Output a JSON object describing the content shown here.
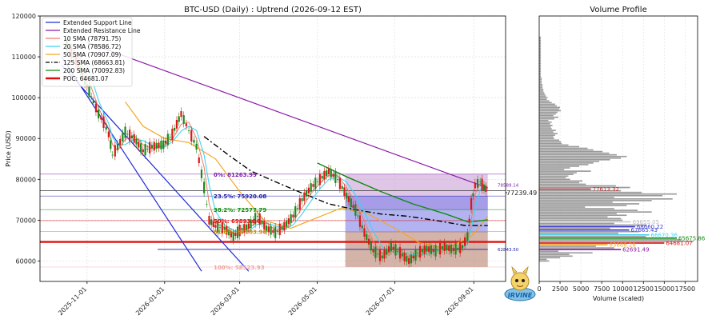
{
  "chart_data": [
    {
      "type": "candlestick",
      "title": "BTC-USD (Daily) : Uptrend (2026-09-12 EST)",
      "ylabel": "Price (USD)",
      "xlabel": "",
      "ylim": [
        55000,
        120000
      ],
      "xlim": [
        "2025-09-25",
        "2026-09-26"
      ],
      "yticks": [
        60000,
        70000,
        80000,
        90000,
        100000,
        110000,
        120000
      ],
      "xticks": [
        "2025-11-01",
        "2026-01-01",
        "2026-03-01",
        "2026-05-01",
        "2026-07-01",
        "2026-09-01"
      ],
      "grid": true,
      "legend_position": "top-left",
      "legend": [
        {
          "label": "Extended Support Line",
          "color": "#1f2bd6",
          "style": "solid"
        },
        {
          "label": "Extended Resistance Line",
          "color": "#8a1aa8",
          "style": "solid"
        },
        {
          "label": "10 SMA (78791.75)",
          "color": "#f07a6a",
          "style": "solid"
        },
        {
          "label": "20 SMA (78586.72)",
          "color": "#3fd4f0",
          "style": "solid"
        },
        {
          "label": "50 SMA (70907.09)",
          "color": "#f5a623",
          "style": "solid"
        },
        {
          "label": "125 SMA (68663.81)",
          "color": "#000000",
          "style": "dashdot"
        },
        {
          "label": "200 SMA (70092.83)",
          "color": "#118a11",
          "style": "solid"
        },
        {
          "label": "POC: 64681.07",
          "color": "#e01010",
          "style": "thick"
        }
      ],
      "price_path": [
        [
          "2025-10-16",
          113000
        ],
        [
          "2025-10-25",
          108000
        ],
        [
          "2025-11-01",
          103000
        ],
        [
          "2025-11-06",
          99000
        ],
        [
          "2025-11-10",
          96000
        ],
        [
          "2025-11-14",
          94000
        ],
        [
          "2025-11-18",
          91000
        ],
        [
          "2025-11-21",
          86000
        ],
        [
          "2025-11-25",
          88000
        ],
        [
          "2025-12-01",
          91500
        ],
        [
          "2025-12-08",
          90000
        ],
        [
          "2025-12-15",
          87000
        ],
        [
          "2025-12-22",
          88000
        ],
        [
          "2025-12-31",
          88500
        ],
        [
          "2026-01-07",
          91000
        ],
        [
          "2026-01-14",
          96000
        ],
        [
          "2026-01-20",
          92000
        ],
        [
          "2026-01-26",
          88000
        ],
        [
          "2026-02-01",
          78000
        ],
        [
          "2026-02-05",
          70000
        ],
        [
          "2026-02-10",
          68500
        ],
        [
          "2026-02-17",
          68000
        ],
        [
          "2026-02-24",
          66000
        ],
        [
          "2026-03-01",
          67500
        ],
        [
          "2026-03-08",
          68500
        ],
        [
          "2026-03-15",
          71000
        ],
        [
          "2026-03-22",
          68000
        ],
        [
          "2026-03-29",
          67000
        ],
        [
          "2026-04-05",
          68500
        ],
        [
          "2026-04-12",
          71000
        ],
        [
          "2026-04-19",
          75000
        ],
        [
          "2026-04-26",
          78000
        ],
        [
          "2026-05-03",
          80000
        ],
        [
          "2026-05-10",
          82000
        ],
        [
          "2026-05-17",
          80000
        ],
        [
          "2026-05-24",
          76000
        ],
        [
          "2026-05-31",
          72500
        ],
        [
          "2026-06-07",
          67000
        ],
        [
          "2026-06-14",
          62500
        ],
        [
          "2026-06-21",
          61000
        ],
        [
          "2026-06-28",
          63500
        ],
        [
          "2026-07-05",
          62000
        ],
        [
          "2026-07-12",
          60000
        ],
        [
          "2026-07-19",
          62000
        ],
        [
          "2026-07-26",
          63000
        ],
        [
          "2026-08-02",
          62500
        ],
        [
          "2026-08-09",
          63500
        ],
        [
          "2026-08-16",
          62800
        ],
        [
          "2026-08-23",
          63500
        ],
        [
          "2026-08-27",
          66000
        ],
        [
          "2026-08-30",
          74000
        ],
        [
          "2026-09-02",
          78500
        ],
        [
          "2026-09-06",
          79500
        ],
        [
          "2026-09-09",
          78000
        ],
        [
          "2026-09-12",
          77239.49
        ]
      ],
      "sma_50": [
        [
          "2025-12-01",
          99000
        ],
        [
          "2025-12-15",
          93000
        ],
        [
          "2026-01-01",
          90000
        ],
        [
          "2026-01-20",
          89000
        ],
        [
          "2026-02-10",
          85000
        ],
        [
          "2026-03-01",
          77000
        ],
        [
          "2026-03-20",
          70000
        ],
        [
          "2026-04-10",
          68000
        ],
        [
          "2026-04-30",
          70500
        ],
        [
          "2026-05-20",
          73000
        ],
        [
          "2026-06-10",
          71500
        ],
        [
          "2026-07-01",
          68000
        ],
        [
          "2026-07-20",
          64500
        ],
        [
          "2026-08-10",
          63000
        ],
        [
          "2026-08-30",
          66000
        ],
        [
          "2026-09-12",
          70907.09
        ]
      ],
      "sma_125": [
        [
          "2026-02-01",
          90500
        ],
        [
          "2026-02-20",
          86000
        ],
        [
          "2026-03-10",
          82000
        ],
        [
          "2026-04-01",
          79000
        ],
        [
          "2026-04-20",
          76500
        ],
        [
          "2026-05-10",
          74000
        ],
        [
          "2026-06-01",
          72500
        ],
        [
          "2026-06-20",
          71500
        ],
        [
          "2026-07-10",
          71000
        ],
        [
          "2026-08-01",
          70000
        ],
        [
          "2026-08-25",
          68700
        ],
        [
          "2026-09-12",
          68663.81
        ]
      ],
      "sma_200": [
        [
          "2026-05-01",
          84000
        ],
        [
          "2026-05-25",
          80500
        ],
        [
          "2026-06-20",
          77000
        ],
        [
          "2026-07-15",
          74000
        ],
        [
          "2026-08-10",
          71500
        ],
        [
          "2026-08-28",
          69500
        ],
        [
          "2026-09-12",
          70092.83
        ]
      ],
      "support_lines": [
        [
          [
            "2025-10-12",
            110000
          ],
          [
            "2026-01-30",
            57500
          ]
        ],
        [
          [
            "2025-10-12",
            108000
          ],
          [
            "2026-03-08",
            57500
          ]
        ]
      ],
      "resistance_line": [
        [
          "2025-11-01",
          113500
        ],
        [
          "2026-09-12",
          77900
        ]
      ],
      "fibonacci": [
        {
          "label": "0%: 81263.99",
          "value": 81263.99,
          "color": "#7a1aa8"
        },
        {
          "label": "23.5%: 75920.08",
          "value": 75920.08,
          "color": "#1a1aa8"
        },
        {
          "label": "38.2%: 72577.79",
          "value": 72577.79,
          "color": "#118a11"
        },
        {
          "label": "50%: 69893.36",
          "value": 69893.36,
          "color": "#e01010"
        },
        {
          "label": "61.8%: 67203.96",
          "value": 67203.96,
          "color": "#cc8a10"
        },
        {
          "label": "100%: 58523.93",
          "value": 58523.93,
          "color": "#f2a0a0"
        }
      ],
      "poc": 64681.07,
      "current_price": 77239.49,
      "annotations": [
        {
          "text": "78589.14",
          "value": 78589.14,
          "color": "#7a1aa8"
        },
        {
          "text": "62843.50",
          "value": 62843.5,
          "color": "#1a1aa8"
        }
      ],
      "zones": [
        {
          "from": "2026-05-23",
          "to": "2026-09-12",
          "low": 72577.79,
          "high": 81263.99,
          "color": "#c9a0d6"
        },
        {
          "from": "2026-05-23",
          "to": "2026-09-12",
          "low": 67000,
          "high": 75920.08,
          "color": "#8080e8"
        },
        {
          "from": "2026-05-23",
          "to": "2026-09-12",
          "low": 58523.93,
          "high": 67203.96,
          "color": "#b88070"
        }
      ]
    },
    {
      "type": "barh",
      "title": "Volume Profile",
      "xlabel": "Volume (scaled)",
      "xlim": [
        0,
        19000
      ],
      "xticks": [
        0,
        2500,
        5000,
        7500,
        10000,
        12500,
        15000,
        17500
      ],
      "price_levels": [
        60000,
        60400,
        60800,
        61200,
        61600,
        62000,
        62400,
        62800,
        63200,
        63600,
        64000,
        64400,
        64800,
        65200,
        65600,
        66000,
        66400,
        66800,
        67200,
        67600,
        68000,
        68400,
        68800,
        69200,
        69600,
        70000,
        70400,
        70800,
        71200,
        71600,
        72000,
        72400,
        72800,
        73200,
        73600,
        74000,
        74400,
        74800,
        75200,
        75600,
        76000,
        76400,
        76800,
        77200,
        77600,
        78000,
        78400,
        78800,
        79200,
        79600,
        80000,
        80400,
        80800,
        81200,
        81600,
        82000,
        82400,
        82800,
        83200,
        83600,
        84000,
        84400,
        84800,
        85200,
        85600,
        86000,
        86400,
        86800,
        87200,
        87600,
        88000,
        88400,
        88800,
        89200,
        89600,
        90000,
        90400,
        90800,
        91200,
        91600,
        92000,
        92400,
        92800,
        93200,
        93600,
        94000,
        94400,
        94800,
        95200,
        95600,
        96000,
        96400,
        96800,
        97200,
        97600,
        98000,
        98400,
        98800,
        99200,
        99600,
        100000,
        100400,
        100800,
        101200,
        101600,
        102000,
        102400,
        102800,
        103200,
        103600,
        104000,
        104400,
        104800,
        105200,
        105600,
        106000,
        106400,
        106800,
        107200,
        107600,
        108000,
        108400,
        108800,
        109200,
        109600,
        110000,
        110400,
        110800,
        111200,
        111600,
        112000,
        112400,
        112800,
        113200,
        113600,
        114000,
        114400,
        114800,
        115200
      ],
      "values": [
        1200,
        900,
        2500,
        4000,
        3600,
        6400,
        2300,
        9800,
        9000,
        6800,
        8200,
        15000,
        18500,
        17000,
        16500,
        12800,
        13200,
        9500,
        12000,
        10800,
        8500,
        11500,
        12900,
        9000,
        11000,
        10000,
        9800,
        8200,
        10500,
        9300,
        13500,
        11800,
        9000,
        5500,
        10500,
        12000,
        8800,
        13500,
        16000,
        9000,
        14800,
        16500,
        12300,
        9800,
        6200,
        10900,
        9200,
        5600,
        4800,
        5200,
        3700,
        3200,
        3500,
        4100,
        4500,
        6200,
        3000,
        3700,
        4800,
        5900,
        6500,
        7200,
        8500,
        9800,
        10500,
        9300,
        8400,
        7600,
        6500,
        5800,
        4800,
        3500,
        2700,
        2600,
        2400,
        1800,
        1700,
        1900,
        2200,
        1700,
        2000,
        1500,
        1400,
        1600,
        1300,
        1500,
        1100,
        1800,
        2300,
        1700,
        2000,
        2200,
        2600,
        2400,
        2500,
        2100,
        1900,
        1500,
        1200,
        900,
        1000,
        800,
        700,
        600,
        500,
        500,
        400,
        400,
        400,
        300,
        300,
        300,
        300,
        200,
        200,
        200,
        200,
        200,
        200,
        200,
        200,
        200,
        200,
        200,
        200,
        200,
        200,
        200,
        200,
        200,
        200,
        200,
        200,
        200,
        200,
        200,
        200,
        200
      ],
      "value_labels": [
        {
          "text": "77613.32",
          "color": "#c03030"
        },
        {
          "text": "69655.05",
          "color": "#bbbbbb"
        },
        {
          "text": "68660.22",
          "color": "#3a3acc"
        },
        {
          "text": "67665.43",
          "color": "#3a3acc"
        },
        {
          "text": "66670.36",
          "color": "#3fd4f0"
        },
        {
          "text": "65675.86",
          "color": "#118a11"
        },
        {
          "text": "64681.07",
          "color": "#e01010"
        },
        {
          "text": "63686.28",
          "color": "#f5a623"
        },
        {
          "text": "62691.49",
          "color": "#8a1aa8"
        }
      ],
      "highlights": [
        {
          "bin": 44,
          "color": "#b04040"
        },
        {
          "bin": 24,
          "color": "#cccccc"
        },
        {
          "bin": 21,
          "color": "#3a3acc"
        },
        {
          "bin": 19,
          "color": "#3a3acc"
        },
        {
          "bin": 16,
          "color": "#3fd4f0"
        },
        {
          "bin": 14,
          "color": "#118a11"
        },
        {
          "bin": 11,
          "color": "#e01010"
        },
        {
          "bin": 10,
          "color": "#f5a623"
        },
        {
          "bin": 7,
          "color": "#8a1aa8"
        }
      ],
      "current_price_label": "77239.49"
    }
  ],
  "watermark_text": "IRVINE"
}
